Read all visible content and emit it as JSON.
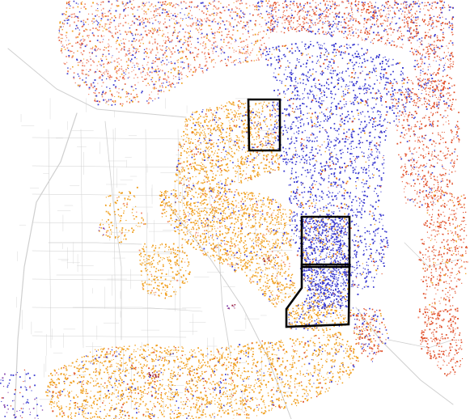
{
  "map": {
    "title": "",
    "background_color": "#ffffff",
    "road_color": "#cfcfcf",
    "outline_color": "#000000",
    "legend": [],
    "dot_categories": [
      {
        "key": "orange",
        "color": "#f0a020"
      },
      {
        "key": "blue",
        "color": "#3a3ad0"
      },
      {
        "key": "red",
        "color": "#e0502a"
      },
      {
        "key": "lightred",
        "color": "#f08a70"
      },
      {
        "key": "purple",
        "color": "#8a4ab0"
      },
      {
        "key": "darkred",
        "color": "#9a2040"
      }
    ],
    "highlighted_regions": [
      {
        "id": "region-1"
      },
      {
        "id": "region-2"
      },
      {
        "id": "region-3"
      }
    ]
  }
}
